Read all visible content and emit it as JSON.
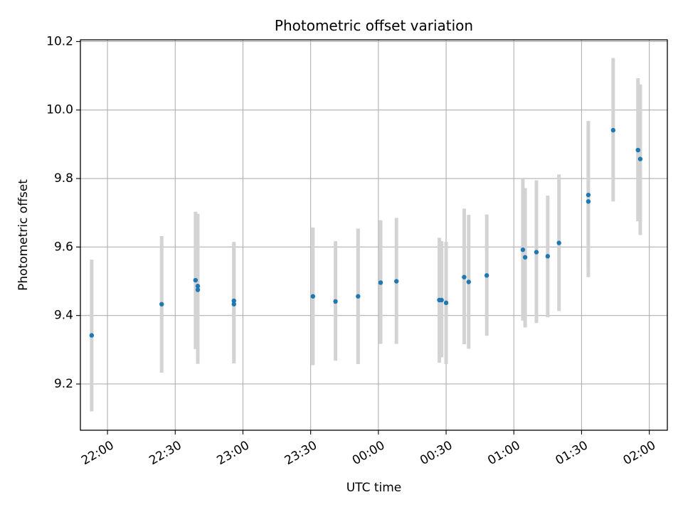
{
  "chart_data": {
    "type": "scatter",
    "title": "Photometric offset variation",
    "xlabel": "UTC time",
    "ylabel": "Photometric offset",
    "x_unit": "UTC time (HH:MM)",
    "xlim": [
      "21:48",
      "02:08"
    ],
    "ylim": [
      9.065,
      10.205
    ],
    "grid": true,
    "legend": null,
    "colors": {
      "point": "#1f77b4",
      "errorbar": "#d3d3d3",
      "grid": "#b0b0b0"
    },
    "xticks": [
      "22:00",
      "22:30",
      "23:00",
      "23:30",
      "00:00",
      "00:30",
      "01:00",
      "01:30",
      "02:00"
    ],
    "yticks": [
      "9.2",
      "9.4",
      "9.6",
      "9.8",
      "10.0",
      "10.2"
    ],
    "ytick_values": [
      9.2,
      9.4,
      9.6,
      9.8,
      10.0,
      10.2
    ],
    "points": [
      {
        "x": "21:53",
        "y": 9.342,
        "ylo": 9.12,
        "yhi": 9.563
      },
      {
        "x": "22:24",
        "y": 9.433,
        "ylo": 9.233,
        "yhi": 9.632
      },
      {
        "x": "22:39",
        "y": 9.503,
        "ylo": 9.302,
        "yhi": 9.703
      },
      {
        "x": "22:40",
        "y": 9.486,
        "ylo": 9.285,
        "yhi": 9.697
      },
      {
        "x": "22:40",
        "y": 9.475,
        "ylo": 9.259,
        "yhi": 9.692
      },
      {
        "x": "22:56",
        "y": 9.433,
        "ylo": 9.26,
        "yhi": 9.61
      },
      {
        "x": "22:56",
        "y": 9.443,
        "ylo": 9.275,
        "yhi": 9.615
      },
      {
        "x": "23:31",
        "y": 9.456,
        "ylo": 9.255,
        "yhi": 9.657
      },
      {
        "x": "23:41",
        "y": 9.441,
        "ylo": 9.268,
        "yhi": 9.617
      },
      {
        "x": "23:51",
        "y": 9.456,
        "ylo": 9.258,
        "yhi": 9.654
      },
      {
        "x": "00:01",
        "y": 9.496,
        "ylo": 9.317,
        "yhi": 9.678
      },
      {
        "x": "00:08",
        "y": 9.5,
        "ylo": 9.317,
        "yhi": 9.685
      },
      {
        "x": "00:27",
        "y": 9.445,
        "ylo": 9.262,
        "yhi": 9.627
      },
      {
        "x": "00:28",
        "y": 9.445,
        "ylo": 9.278,
        "yhi": 9.617
      },
      {
        "x": "00:30",
        "y": 9.437,
        "ylo": 9.258,
        "yhi": 9.615
      },
      {
        "x": "00:38",
        "y": 9.512,
        "ylo": 9.316,
        "yhi": 9.712
      },
      {
        "x": "00:40",
        "y": 9.498,
        "ylo": 9.303,
        "yhi": 9.694
      },
      {
        "x": "00:48",
        "y": 9.517,
        "ylo": 9.341,
        "yhi": 9.695
      },
      {
        "x": "01:04",
        "y": 9.592,
        "ylo": 9.385,
        "yhi": 9.798
      },
      {
        "x": "01:05",
        "y": 9.57,
        "ylo": 9.365,
        "yhi": 9.772
      },
      {
        "x": "01:10",
        "y": 9.585,
        "ylo": 9.378,
        "yhi": 9.795
      },
      {
        "x": "01:15",
        "y": 9.573,
        "ylo": 9.395,
        "yhi": 9.75
      },
      {
        "x": "01:20",
        "y": 9.612,
        "ylo": 9.413,
        "yhi": 9.812
      },
      {
        "x": "01:33",
        "y": 9.733,
        "ylo": 9.512,
        "yhi": 9.955
      },
      {
        "x": "01:33",
        "y": 9.752,
        "ylo": 9.535,
        "yhi": 9.968
      },
      {
        "x": "01:44",
        "y": 9.941,
        "ylo": 9.733,
        "yhi": 10.152
      },
      {
        "x": "01:55",
        "y": 9.883,
        "ylo": 9.675,
        "yhi": 10.093
      },
      {
        "x": "01:56",
        "y": 9.857,
        "ylo": 9.635,
        "yhi": 10.075
      }
    ]
  }
}
